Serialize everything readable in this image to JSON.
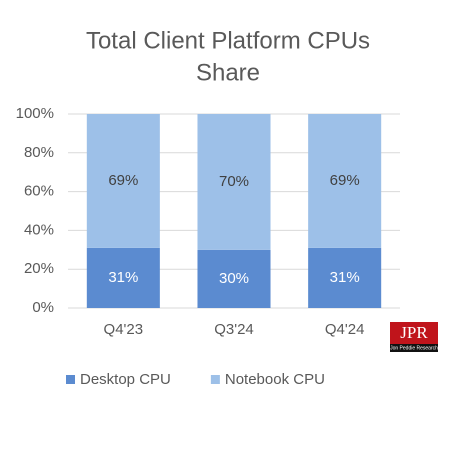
{
  "chart_data": {
    "type": "stacked_bar",
    "title": "Total Client Platform CPUs",
    "subtitle": "Share",
    "categories": [
      "Q4'23",
      "Q3'24",
      "Q4'24"
    ],
    "series": [
      {
        "name": "Desktop CPU",
        "color": "#5b8bd0",
        "label_color": "#ffffff",
        "values": [
          31,
          30,
          31
        ],
        "value_labels": [
          "31%",
          "30%",
          "31%"
        ]
      },
      {
        "name": "Notebook CPU",
        "color": "#9dc0e8",
        "label_color": "#404040",
        "values": [
          69,
          70,
          69
        ],
        "value_labels": [
          "69%",
          "70%",
          "69%"
        ]
      }
    ],
    "ylim": [
      0,
      100
    ],
    "yticks": [
      {
        "value": 0,
        "label": "0%"
      },
      {
        "value": 20,
        "label": "20%"
      },
      {
        "value": 40,
        "label": "40%"
      },
      {
        "value": 60,
        "label": "60%"
      },
      {
        "value": 80,
        "label": "80%"
      },
      {
        "value": 100,
        "label": "100%"
      }
    ],
    "grid": true,
    "legend": "bottom",
    "logo": {
      "text": "JPR",
      "subtext": "Jon Peddie Research"
    }
  }
}
